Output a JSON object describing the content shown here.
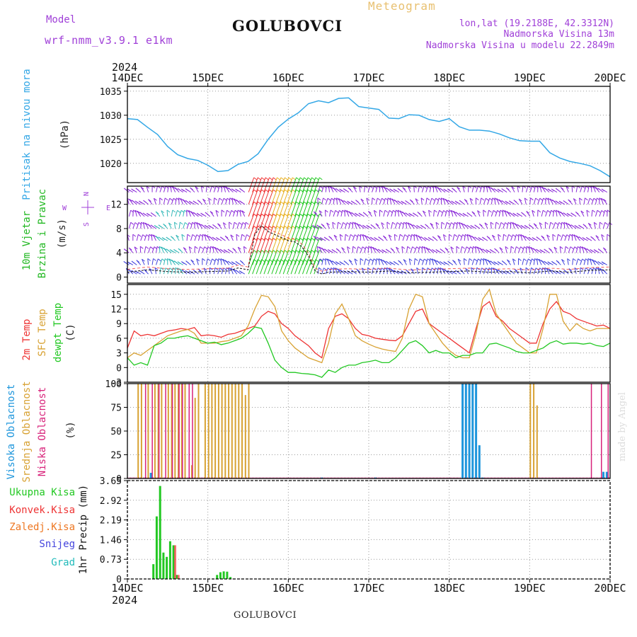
{
  "header": {
    "model_label": "Model",
    "model_name": "wrf-nmm_v3.9.1 e1km",
    "station": "GOLUBOVCI",
    "product": "Meteogram",
    "lonlat": "lon,lat (19.2188E, 42.3312N)",
    "elevation": "Nadmorska Visina 13m",
    "model_elevation": "Nadmorska Visina u modelu 22.2849m",
    "credit": "made by Angel",
    "footer_station": "GOLUBOVCI"
  },
  "colors": {
    "pressure": "#33a7e6",
    "wind_title": "#22b822",
    "wind_units": "#222222",
    "direction_legend": "#a040d8",
    "t2m": "#ee3333",
    "tsfc": "#d8a233",
    "dewpt": "#22c822",
    "cloud_high": "#1e96dc",
    "cloud_mid": "#d8a233",
    "cloud_low": "#d8227a",
    "precip_total": "#22c822",
    "precip_conv": "#ee3333",
    "precip_freezing": "#ee7722",
    "precip_snow": "#4444dd",
    "precip_hail": "#22bbbb",
    "header_purple": "#a040d8",
    "product_color": "#e8c070"
  },
  "time_axis": {
    "year": "2024",
    "ticks": [
      "14DEC",
      "15DEC",
      "16DEC",
      "17DEC",
      "18DEC",
      "19DEC",
      "20DEC"
    ],
    "start_hour": 0,
    "end_hour": 144
  },
  "panels": {
    "pressure": {
      "label": "Pritisak na nivou mora",
      "units": "(hPa)"
    },
    "wind": {
      "label_1": "10m Vjetar",
      "label_2": "Brzina i Pravac",
      "units": "(m/s)",
      "dir_legend_n": "N",
      "dir_legend_w": "W",
      "dir_legend_e": "E",
      "dir_legend_s": "S"
    },
    "temperature": {
      "label_t2m": "2m Temp",
      "label_tsfc": "SFC Temp",
      "label_dewpt": "dewpt Temp",
      "units": "(C)"
    },
    "clouds": {
      "label_high": "Visoka Oblacnost",
      "label_mid": "Srednja Oblacnost",
      "label_low": "Niska Oblacnost",
      "units": "(%)"
    },
    "precip": {
      "label_units": "1hr Precip (mm)",
      "legend_total": "Ukupna Kisa",
      "legend_conv": "Konvek.Kisa",
      "legend_freezing": "Zaledj.Kisa",
      "legend_snow": "Snijeg",
      "legend_hail": "Grad"
    }
  },
  "chart_data": [
    {
      "type": "line",
      "name": "pressure",
      "ylim": [
        1016,
        1036
      ],
      "yticks": [
        1020,
        1025,
        1030,
        1035
      ],
      "x_hours": [
        0,
        3,
        6,
        9,
        12,
        15,
        18,
        21,
        24,
        27,
        30,
        33,
        36,
        39,
        42,
        45,
        48,
        51,
        54,
        57,
        60,
        63,
        66,
        69,
        72,
        75,
        78,
        81,
        84,
        87,
        90,
        93,
        96,
        99,
        102,
        105,
        108,
        111,
        114,
        117,
        120,
        123,
        126,
        129,
        132,
        135,
        138,
        141,
        144
      ],
      "values": [
        1029.3,
        1029.1,
        1027.5,
        1026.0,
        1023.5,
        1021.8,
        1021.0,
        1020.6,
        1019.6,
        1018.3,
        1018.5,
        1019.8,
        1020.4,
        1022.0,
        1025.0,
        1027.5,
        1029.2,
        1030.5,
        1032.4,
        1033.0,
        1032.6,
        1033.5,
        1033.6,
        1031.8,
        1031.5,
        1031.2,
        1029.4,
        1029.3,
        1030.1,
        1030.0,
        1029.1,
        1028.7,
        1029.3,
        1027.6,
        1026.9,
        1026.9,
        1026.7,
        1026.1,
        1025.3,
        1024.7,
        1024.6,
        1024.6,
        1022.2,
        1021.1,
        1020.4,
        1020.0,
        1019.5,
        1018.5,
        1017.2
      ]
    },
    {
      "type": "line",
      "name": "10m wind speed",
      "ylim": [
        -1,
        15
      ],
      "yticks": [
        0,
        4,
        8,
        12
      ],
      "x_hours": [
        0,
        6,
        12,
        18,
        24,
        30,
        33,
        36,
        38,
        40,
        42,
        44,
        46,
        48,
        50,
        52,
        54,
        56,
        58,
        60,
        66,
        72,
        78,
        84,
        90,
        96,
        102,
        108,
        114,
        120,
        126,
        132,
        138,
        144
      ],
      "values": [
        0.8,
        1.2,
        0.9,
        0.8,
        0.9,
        1.0,
        1.5,
        1.2,
        7.0,
        8.5,
        7.5,
        7.0,
        6.5,
        6.0,
        5.8,
        5.0,
        3.5,
        1.0,
        0.5,
        0.8,
        0.9,
        0.8,
        1.0,
        0.7,
        0.8,
        0.9,
        1.0,
        0.8,
        0.9,
        0.7,
        1.0,
        0.8,
        1.1,
        1.2
      ]
    },
    {
      "type": "line",
      "name": "temperature",
      "ylim": [
        -3,
        17
      ],
      "yticks": [
        -3,
        0,
        3,
        6,
        9,
        12,
        15
      ],
      "x_hours": [
        0,
        2,
        4,
        6,
        8,
        10,
        12,
        14,
        16,
        18,
        20,
        22,
        24,
        26,
        28,
        30,
        32,
        34,
        36,
        38,
        40,
        42,
        44,
        46,
        48,
        50,
        52,
        54,
        56,
        58,
        60,
        62,
        64,
        66,
        68,
        70,
        72,
        74,
        76,
        78,
        80,
        82,
        84,
        86,
        88,
        90,
        92,
        94,
        96,
        98,
        100,
        102,
        104,
        106,
        108,
        110,
        112,
        114,
        116,
        118,
        120,
        122,
        124,
        126,
        128,
        130,
        132,
        134,
        136,
        138,
        140,
        142,
        144
      ],
      "series": [
        {
          "name": "2m Temp",
          "values": [
            4.0,
            7.5,
            6.5,
            6.8,
            6.5,
            7.0,
            7.5,
            7.7,
            8.0,
            7.8,
            8.2,
            6.5,
            6.7,
            6.5,
            6.2,
            6.8,
            7.0,
            7.5,
            8.0,
            8.5,
            10.5,
            11.5,
            11.0,
            9.0,
            8.0,
            6.5,
            5.5,
            4.5,
            3.0,
            2.0,
            8.0,
            10.5,
            11.0,
            10.0,
            8.0,
            6.8,
            6.5,
            6.0,
            5.8,
            5.6,
            5.5,
            6.5,
            9.0,
            11.5,
            12.0,
            9.0,
            8.0,
            7.0,
            6.0,
            5.0,
            4.0,
            3.0,
            8.0,
            12.5,
            13.5,
            10.5,
            9.5,
            8.0,
            7.0,
            6.0,
            5.0,
            5.0,
            9.0,
            12.0,
            13.5,
            11.5,
            11.0,
            10.0,
            9.5,
            9.0,
            8.5,
            8.7,
            8.0
          ]
        },
        {
          "name": "SFC Temp",
          "values": [
            2.0,
            3.0,
            2.5,
            3.5,
            4.5,
            5.5,
            6.5,
            7.0,
            7.5,
            7.8,
            7.0,
            5.0,
            5.0,
            5.0,
            5.3,
            5.5,
            6.0,
            6.5,
            8.5,
            12.0,
            14.8,
            14.5,
            12.5,
            7.5,
            5.5,
            4.0,
            3.0,
            2.0,
            1.5,
            1.0,
            5.0,
            11.0,
            13.0,
            10.0,
            6.5,
            5.5,
            4.8,
            4.2,
            3.8,
            3.5,
            3.3,
            6.0,
            12.0,
            15.0,
            14.5,
            9.0,
            7.0,
            5.0,
            3.5,
            2.5,
            2.0,
            2.0,
            7.0,
            14.0,
            16.0,
            11.0,
            9.0,
            7.0,
            5.0,
            4.0,
            3.0,
            3.0,
            8.0,
            15.0,
            15.0,
            9.5,
            7.5,
            9.0,
            8.0,
            7.5,
            8.0,
            8.0,
            8.0
          ]
        },
        {
          "name": "dewpt Temp",
          "values": [
            2.0,
            0.5,
            1.0,
            0.5,
            4.5,
            5.0,
            6.0,
            6.0,
            6.3,
            6.5,
            6.0,
            5.5,
            5.0,
            5.2,
            4.7,
            5.0,
            5.5,
            6.0,
            7.0,
            8.3,
            8.0,
            5.0,
            1.5,
            0.0,
            -1.0,
            -1.0,
            -1.2,
            -1.3,
            -1.5,
            -2.0,
            -0.5,
            -1.0,
            0.0,
            0.5,
            0.5,
            1.0,
            1.2,
            1.5,
            1.0,
            1.0,
            2.0,
            3.5,
            5.0,
            5.5,
            4.5,
            3.0,
            3.5,
            3.0,
            3.0,
            2.0,
            2.5,
            2.5,
            3.0,
            3.0,
            4.8,
            5.0,
            4.5,
            4.0,
            3.3,
            3.0,
            3.0,
            3.5,
            4.0,
            5.0,
            5.5,
            4.8,
            5.0,
            5.0,
            4.8,
            5.0,
            4.5,
            4.3,
            5.0
          ]
        }
      ]
    },
    {
      "type": "bar",
      "name": "cloud cover",
      "ylim": [
        0,
        100
      ],
      "yticks": [
        0,
        25,
        50,
        75,
        100
      ],
      "series": [
        {
          "name": "Visoka Oblacnost",
          "x_hours": [
            7,
            58,
            74,
            100,
            101,
            102,
            103,
            104,
            105,
            106,
            142,
            143
          ],
          "values": [
            6,
            1,
            1,
            100,
            100,
            100,
            100,
            100,
            35,
            1,
            7,
            7
          ]
        },
        {
          "name": "Srednja Oblacnost",
          "x_hours": [
            3,
            4,
            6,
            8,
            9,
            10,
            12,
            13,
            14,
            15,
            16,
            17,
            19,
            20,
            21,
            23,
            24,
            25,
            26,
            27,
            28,
            29,
            30,
            31,
            32,
            33,
            34,
            35,
            36,
            120,
            121,
            122
          ],
          "values": [
            100,
            100,
            100,
            100,
            100,
            100,
            100,
            100,
            100,
            100,
            100,
            100,
            14,
            85,
            100,
            100,
            100,
            100,
            100,
            100,
            100,
            100,
            100,
            100,
            100,
            100,
            100,
            88,
            100,
            100,
            100,
            77
          ]
        },
        {
          "name": "Niska Oblacnost",
          "x_hours": [
            5,
            7,
            9,
            11,
            13,
            15,
            16,
            18,
            19,
            138,
            141,
            143
          ],
          "values": [
            100,
            100,
            100,
            100,
            100,
            100,
            100,
            100,
            100,
            100,
            100,
            100
          ]
        }
      ]
    },
    {
      "type": "bar",
      "name": "1hr precip",
      "ylim": [
        0,
        3.65
      ],
      "yticks": [
        0,
        0.73,
        1.46,
        2.19,
        2.92,
        3.65
      ],
      "series": [
        {
          "name": "Ukupna Kisa",
          "x_hours": [
            8,
            9,
            10,
            11,
            12,
            13,
            14,
            15,
            27,
            28,
            29,
            30,
            31
          ],
          "values": [
            0.55,
            2.32,
            3.45,
            0.98,
            0.82,
            1.4,
            1.25,
            0.15,
            0.15,
            0.25,
            0.28,
            0.27,
            0.07
          ]
        },
        {
          "name": "Konvek.Kisa",
          "x_hours": [
            14,
            15
          ],
          "values": [
            1.25,
            0.15
          ]
        }
      ]
    }
  ]
}
